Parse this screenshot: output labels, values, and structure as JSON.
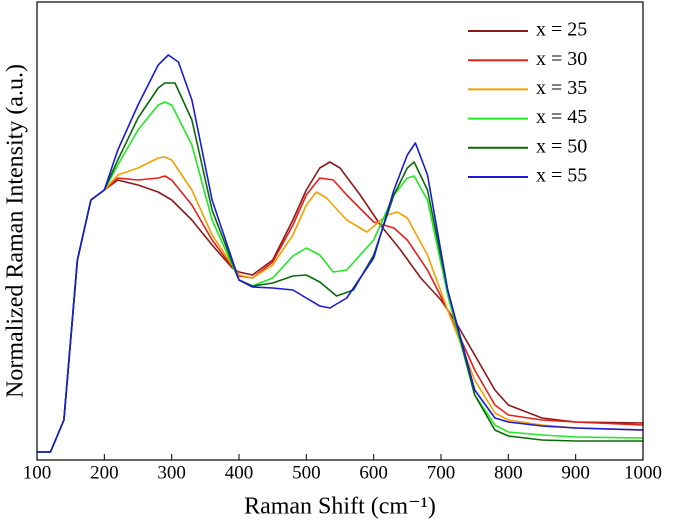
{
  "chart_data": {
    "type": "line",
    "x_label": "Raman Shift (cm⁻¹)",
    "y_label": "Normalized Raman Intensity (a.u.)",
    "xlim": [
      100,
      1000
    ],
    "xticks": [
      100,
      200,
      300,
      400,
      500,
      600,
      700,
      800,
      900,
      1000
    ],
    "ylim": [
      0,
      458
    ],
    "legend": "upper right",
    "series": [
      {
        "name": "x = 25",
        "color": "#8b1a1a",
        "x": [
          100,
          120,
          140,
          160,
          180,
          200,
          220,
          250,
          280,
          300,
          330,
          360,
          390,
          400,
          420,
          450,
          480,
          500,
          520,
          535,
          550,
          580,
          610,
          640,
          670,
          700,
          720,
          750,
          780,
          800,
          850,
          900,
          1000
        ],
        "values": [
          8,
          8,
          40,
          200,
          260,
          270,
          280,
          275,
          268,
          260,
          240,
          215,
          192,
          188,
          185,
          200,
          240,
          270,
          292,
          298,
          292,
          265,
          235,
          210,
          182,
          160,
          140,
          105,
          70,
          55,
          42,
          38,
          37
        ]
      },
      {
        "name": "x = 30",
        "color": "#e8201a",
        "x": [
          100,
          120,
          140,
          160,
          180,
          200,
          220,
          250,
          280,
          290,
          300,
          330,
          360,
          400,
          420,
          450,
          480,
          500,
          520,
          540,
          560,
          600,
          630,
          650,
          680,
          710,
          750,
          780,
          800,
          850,
          900,
          1000
        ],
        "values": [
          8,
          8,
          40,
          200,
          260,
          270,
          282,
          280,
          282,
          284,
          280,
          255,
          220,
          184,
          182,
          198,
          235,
          265,
          282,
          280,
          265,
          238,
          232,
          220,
          190,
          150,
          90,
          55,
          45,
          40,
          38,
          35
        ]
      },
      {
        "name": "x = 35",
        "color": "#f5a000",
        "x": [
          100,
          120,
          140,
          160,
          180,
          200,
          220,
          250,
          280,
          290,
          300,
          330,
          360,
          400,
          420,
          450,
          480,
          500,
          515,
          530,
          560,
          590,
          620,
          635,
          650,
          680,
          710,
          750,
          780,
          800,
          850,
          900,
          1000
        ],
        "values": [
          8,
          8,
          40,
          200,
          260,
          270,
          285,
          292,
          302,
          303,
          300,
          270,
          225,
          185,
          182,
          195,
          225,
          255,
          268,
          262,
          240,
          228,
          245,
          248,
          242,
          205,
          150,
          80,
          47,
          40,
          35,
          32,
          30
        ]
      },
      {
        "name": "x = 45",
        "color": "#22e822",
        "x": [
          100,
          120,
          140,
          160,
          180,
          200,
          220,
          250,
          280,
          290,
          300,
          330,
          360,
          400,
          420,
          450,
          480,
          500,
          520,
          540,
          560,
          600,
          630,
          650,
          660,
          680,
          710,
          750,
          780,
          800,
          850,
          900,
          1000
        ],
        "values": [
          8,
          8,
          40,
          200,
          260,
          270,
          295,
          330,
          355,
          358,
          355,
          315,
          240,
          180,
          174,
          182,
          204,
          212,
          205,
          188,
          190,
          220,
          265,
          282,
          284,
          260,
          165,
          65,
          35,
          28,
          25,
          23,
          22
        ]
      },
      {
        "name": "x = 50",
        "color": "#0a6a0a",
        "x": [
          100,
          120,
          140,
          160,
          180,
          200,
          220,
          250,
          280,
          290,
          305,
          330,
          360,
          400,
          420,
          450,
          480,
          500,
          520,
          545,
          570,
          600,
          630,
          650,
          660,
          680,
          710,
          750,
          780,
          800,
          850,
          900,
          1000
        ],
        "values": [
          8,
          8,
          40,
          200,
          260,
          270,
          300,
          342,
          372,
          377,
          377,
          340,
          250,
          180,
          174,
          177,
          184,
          185,
          178,
          164,
          170,
          205,
          265,
          292,
          298,
          270,
          170,
          65,
          30,
          24,
          20,
          19,
          19
        ]
      },
      {
        "name": "x = 55",
        "color": "#1a1ad8",
        "x": [
          100,
          120,
          140,
          160,
          180,
          200,
          220,
          250,
          280,
          295,
          310,
          330,
          360,
          400,
          420,
          450,
          480,
          500,
          520,
          535,
          560,
          600,
          630,
          650,
          662,
          680,
          710,
          750,
          780,
          800,
          850,
          900,
          1000
        ],
        "values": [
          8,
          8,
          40,
          200,
          260,
          270,
          310,
          355,
          395,
          405,
          398,
          360,
          260,
          180,
          173,
          172,
          170,
          162,
          154,
          152,
          162,
          202,
          270,
          305,
          317,
          285,
          170,
          70,
          42,
          38,
          34,
          32,
          30
        ]
      }
    ]
  }
}
